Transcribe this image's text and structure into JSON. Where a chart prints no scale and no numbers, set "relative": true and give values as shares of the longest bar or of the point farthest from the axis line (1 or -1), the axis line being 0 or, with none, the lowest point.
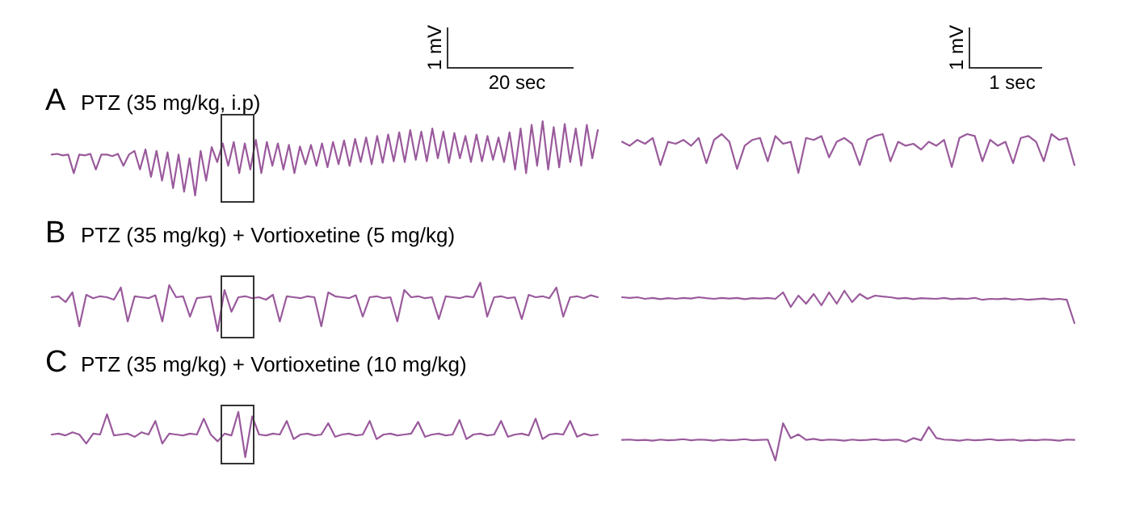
{
  "chart_data": [
    {
      "type": "line",
      "title": "A",
      "subtitle": "PTZ (35 mg/kg, i.p)",
      "relative": true,
      "annotations": [
        "1 mV",
        "20 sec"
      ],
      "categories": [
        null,
        null,
        null,
        null,
        null,
        null,
        null,
        null,
        null,
        null,
        null,
        null,
        null,
        null,
        null,
        null,
        null,
        null,
        null,
        null,
        null,
        null,
        null,
        null,
        null,
        null,
        null,
        null,
        null,
        null,
        null,
        null,
        null,
        null,
        null,
        null,
        null,
        null,
        null,
        null,
        null,
        null,
        null,
        null,
        null,
        null,
        null,
        null,
        null,
        null,
        null,
        null,
        null,
        null,
        null,
        null,
        null,
        null,
        null,
        null,
        null,
        null,
        null,
        null,
        null,
        null,
        null,
        null,
        null,
        null,
        null,
        null,
        null,
        null,
        null,
        null,
        null,
        null,
        null,
        null,
        null,
        null,
        null,
        null,
        null,
        null,
        null,
        null,
        null,
        null,
        null,
        null,
        null,
        null,
        null,
        null,
        null,
        null,
        null,
        null
      ],
      "series": [
        {
          "color": "#9a5a9c",
          "values": [
            0.55,
            0.56,
            0.54,
            0.55,
            0.3,
            0.55,
            0.54,
            0.56,
            0.35,
            0.55,
            0.55,
            0.53,
            0.56,
            0.4,
            0.55,
            0.6,
            0.35,
            0.62,
            0.25,
            0.6,
            0.2,
            0.58,
            0.1,
            0.55,
            0.05,
            0.5,
            0.0,
            0.6,
            0.2,
            0.65,
            0.45,
            0.7,
            0.4,
            0.72,
            0.3,
            0.7,
            0.35,
            0.75,
            0.3,
            0.72,
            0.4,
            0.7,
            0.35,
            0.68,
            0.3,
            0.66,
            0.42,
            0.68,
            0.4,
            0.7,
            0.38,
            0.72,
            0.42,
            0.74,
            0.4,
            0.76,
            0.45,
            0.78,
            0.42,
            0.8,
            0.44,
            0.82,
            0.46,
            0.85,
            0.45,
            0.88,
            0.48,
            0.86,
            0.46,
            0.9,
            0.5,
            0.86,
            0.44,
            0.84,
            0.5,
            0.8,
            0.45,
            0.82,
            0.46,
            0.8,
            0.48,
            0.78,
            0.45,
            0.85,
            0.35,
            0.9,
            0.3,
            0.95,
            0.4,
            1.0,
            0.35,
            0.92,
            0.38,
            0.96,
            0.45,
            0.9,
            0.4,
            0.95,
            0.5,
            0.88
          ]
        }
      ]
    },
    {
      "type": "line",
      "relative": true,
      "annotations": [
        "1 mV",
        "1 sec"
      ],
      "categories": [
        null,
        null,
        null,
        null,
        null,
        null,
        null,
        null,
        null,
        null,
        null,
        null,
        null,
        null,
        null,
        null,
        null,
        null,
        null,
        null,
        null,
        null,
        null,
        null,
        null,
        null,
        null,
        null,
        null,
        null,
        null,
        null,
        null,
        null,
        null,
        null,
        null,
        null,
        null,
        null,
        null,
        null,
        null,
        null,
        null,
        null,
        null,
        null,
        null,
        null,
        null,
        null,
        null,
        null,
        null,
        null,
        null,
        null,
        null,
        null
      ],
      "series": [
        {
          "color": "#9a5a9c",
          "values": [
            0.8,
            0.7,
            0.85,
            0.75,
            0.9,
            0.2,
            0.8,
            0.75,
            0.85,
            0.7,
            0.9,
            0.25,
            0.85,
            1.0,
            0.8,
            0.1,
            0.7,
            0.85,
            0.9,
            0.3,
            0.95,
            0.75,
            0.8,
            0.0,
            0.9,
            0.85,
            0.95,
            0.4,
            0.8,
            0.9,
            0.75,
            0.2,
            0.85,
            0.95,
            1.0,
            0.3,
            0.8,
            0.7,
            0.75,
            0.6,
            0.8,
            0.7,
            0.85,
            0.15,
            0.9,
            1.0,
            0.95,
            0.3,
            0.85,
            0.7,
            0.8,
            0.25,
            0.9,
            0.95,
            0.8,
            0.3,
            1.0,
            0.85,
            0.9,
            0.2
          ]
        }
      ]
    },
    {
      "type": "line",
      "title": "B",
      "subtitle": "PTZ (35 mg/kg) + Vortioxetine (5 mg/kg)",
      "relative": true,
      "categories": [
        null,
        null,
        null,
        null,
        null,
        null,
        null,
        null,
        null,
        null,
        null,
        null,
        null,
        null,
        null,
        null,
        null,
        null,
        null,
        null,
        null,
        null,
        null,
        null,
        null,
        null,
        null,
        null,
        null,
        null,
        null,
        null,
        null,
        null,
        null,
        null,
        null,
        null,
        null,
        null,
        null,
        null,
        null,
        null,
        null,
        null,
        null,
        null,
        null,
        null,
        null,
        null,
        null,
        null,
        null,
        null,
        null,
        null,
        null,
        null,
        null,
        null,
        null,
        null,
        null,
        null,
        null,
        null,
        null,
        null,
        null,
        null,
        null,
        null,
        null,
        null,
        null,
        null,
        null,
        null
      ],
      "series": [
        {
          "color": "#9a5a9c",
          "values": [
            0.7,
            0.72,
            0.6,
            0.8,
            0.1,
            0.75,
            0.68,
            0.72,
            0.7,
            0.65,
            0.9,
            0.2,
            0.72,
            0.7,
            0.68,
            0.74,
            0.2,
            0.95,
            0.7,
            0.72,
            0.3,
            0.68,
            0.7,
            0.72,
            0.0,
            0.85,
            0.4,
            0.7,
            0.72,
            0.68,
            0.7,
            0.65,
            0.75,
            0.2,
            0.72,
            0.7,
            0.68,
            0.72,
            0.7,
            0.1,
            0.8,
            0.72,
            0.7,
            0.68,
            0.74,
            0.3,
            0.7,
            0.72,
            0.68,
            0.7,
            0.2,
            0.85,
            0.7,
            0.72,
            0.68,
            0.7,
            0.25,
            0.72,
            0.7,
            0.68,
            0.72,
            0.7,
            1.0,
            0.3,
            0.7,
            0.72,
            0.68,
            0.7,
            0.25,
            0.75,
            0.7,
            0.72,
            0.68,
            0.9,
            0.3,
            0.7,
            0.72,
            0.68,
            0.74,
            0.7
          ]
        }
      ]
    },
    {
      "type": "line",
      "relative": true,
      "categories": [
        null,
        null,
        null,
        null,
        null,
        null,
        null,
        null,
        null,
        null,
        null,
        null,
        null,
        null,
        null,
        null,
        null,
        null,
        null,
        null,
        null,
        null,
        null,
        null,
        null,
        null,
        null,
        null,
        null,
        null,
        null,
        null,
        null,
        null,
        null,
        null,
        null,
        null,
        null,
        null,
        null,
        null,
        null,
        null,
        null,
        null,
        null,
        null,
        null,
        null,
        null,
        null,
        null,
        null,
        null,
        null,
        null,
        null,
        null,
        null
      ],
      "series": [
        {
          "color": "#9a5a9c",
          "values": [
            0.8,
            0.78,
            0.8,
            0.75,
            0.78,
            0.74,
            0.77,
            0.75,
            0.78,
            0.76,
            0.8,
            0.77,
            0.75,
            0.78,
            0.76,
            0.78,
            0.74,
            0.77,
            0.76,
            0.78,
            0.75,
            0.95,
            0.5,
            0.85,
            0.6,
            0.9,
            0.55,
            0.95,
            0.6,
            1.0,
            0.65,
            0.9,
            0.75,
            0.85,
            0.82,
            0.8,
            0.76,
            0.78,
            0.74,
            0.77,
            0.76,
            0.75,
            0.78,
            0.74,
            0.76,
            0.75,
            0.78,
            0.72,
            0.75,
            0.74,
            0.76,
            0.73,
            0.75,
            0.72,
            0.74,
            0.76,
            0.73,
            0.75,
            0.72,
            0.0
          ]
        }
      ]
    },
    {
      "type": "line",
      "title": "C",
      "subtitle": "PTZ (35 mg/kg) + Vortioxetine (10 mg/kg)",
      "relative": true,
      "categories": [
        null,
        null,
        null,
        null,
        null,
        null,
        null,
        null,
        null,
        null,
        null,
        null,
        null,
        null,
        null,
        null,
        null,
        null,
        null,
        null,
        null,
        null,
        null,
        null,
        null,
        null,
        null,
        null,
        null,
        null,
        null,
        null,
        null,
        null,
        null,
        null,
        null,
        null,
        null,
        null,
        null,
        null,
        null,
        null,
        null,
        null,
        null,
        null,
        null,
        null,
        null,
        null,
        null,
        null,
        null,
        null,
        null,
        null,
        null,
        null,
        null,
        null,
        null,
        null,
        null,
        null,
        null,
        null,
        null,
        null,
        null,
        null,
        null,
        null,
        null,
        null,
        null,
        null,
        null,
        null
      ],
      "series": [
        {
          "color": "#9a5a9c",
          "values": [
            0.5,
            0.52,
            0.48,
            0.55,
            0.5,
            0.3,
            0.52,
            0.5,
            0.95,
            0.48,
            0.5,
            0.52,
            0.45,
            0.55,
            0.5,
            0.8,
            0.3,
            0.52,
            0.5,
            0.48,
            0.52,
            0.5,
            0.85,
            0.5,
            0.35,
            0.52,
            0.48,
            1.0,
            0.0,
            0.9,
            0.5,
            0.48,
            0.52,
            0.5,
            0.8,
            0.4,
            0.5,
            0.52,
            0.48,
            0.5,
            0.75,
            0.45,
            0.5,
            0.52,
            0.48,
            0.5,
            0.8,
            0.4,
            0.5,
            0.52,
            0.48,
            0.5,
            0.52,
            0.78,
            0.45,
            0.5,
            0.52,
            0.48,
            0.5,
            0.82,
            0.4,
            0.5,
            0.52,
            0.48,
            0.5,
            0.8,
            0.45,
            0.5,
            0.52,
            0.48,
            0.85,
            0.4,
            0.5,
            0.52,
            0.5,
            0.8,
            0.45,
            0.52,
            0.48,
            0.5
          ]
        }
      ]
    },
    {
      "type": "line",
      "relative": true,
      "categories": [
        null,
        null,
        null,
        null,
        null,
        null,
        null,
        null,
        null,
        null,
        null,
        null,
        null,
        null,
        null,
        null,
        null,
        null,
        null,
        null,
        null,
        null,
        null,
        null,
        null,
        null,
        null,
        null,
        null,
        null,
        null,
        null,
        null,
        null,
        null,
        null,
        null,
        null,
        null,
        null,
        null,
        null,
        null,
        null,
        null,
        null,
        null,
        null,
        null,
        null,
        null,
        null,
        null,
        null,
        null,
        null,
        null,
        null,
        null,
        null
      ],
      "series": [
        {
          "color": "#9a5a9c",
          "values": [
            0.55,
            0.56,
            0.54,
            0.55,
            0.53,
            0.56,
            0.54,
            0.55,
            0.57,
            0.54,
            0.56,
            0.55,
            0.53,
            0.56,
            0.54,
            0.55,
            0.57,
            0.54,
            0.55,
            0.56,
            0.0,
            1.0,
            0.6,
            0.7,
            0.55,
            0.58,
            0.54,
            0.56,
            0.55,
            0.53,
            0.56,
            0.54,
            0.55,
            0.57,
            0.54,
            0.55,
            0.56,
            0.5,
            0.6,
            0.54,
            0.9,
            0.6,
            0.56,
            0.55,
            0.53,
            0.56,
            0.54,
            0.55,
            0.57,
            0.54,
            0.55,
            0.56,
            0.53,
            0.55,
            0.54,
            0.56,
            0.55,
            0.53,
            0.56,
            0.55
          ]
        }
      ]
    }
  ]
}
